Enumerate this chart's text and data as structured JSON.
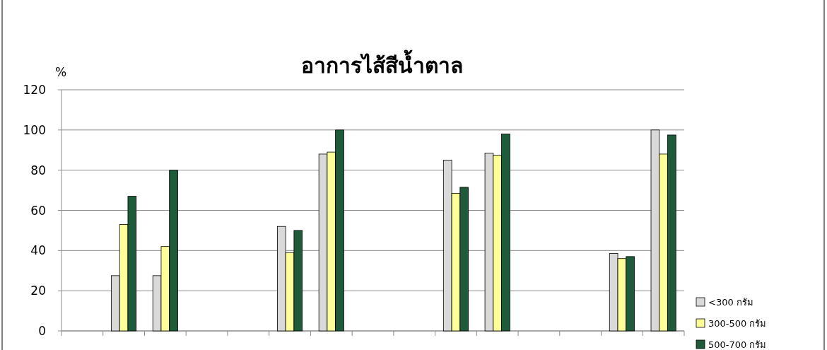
{
  "chart_data": {
    "type": "bar",
    "title": "อาการไส้สีน้ำตาล",
    "ylabel": "%",
    "categories": [
      null,
      null,
      null,
      null,
      null,
      null,
      null,
      null,
      null,
      null,
      null,
      null,
      null,
      null,
      null
    ],
    "series": [
      {
        "name": "<300 กรัม",
        "color": "#d9d9d9",
        "values": [
          null,
          27.5,
          27.5,
          null,
          null,
          52,
          88,
          null,
          null,
          85,
          88.5,
          null,
          null,
          38.5,
          100
        ]
      },
      {
        "name": "300-500 กรัม",
        "color": "#ffff99",
        "values": [
          null,
          53,
          42,
          null,
          null,
          39,
          89,
          null,
          null,
          68.5,
          87.5,
          null,
          null,
          36,
          88
        ]
      },
      {
        "name": "500-700 กรัม",
        "color": "#1e5b3a",
        "values": [
          null,
          67,
          80,
          null,
          null,
          50,
          100,
          null,
          null,
          71.5,
          98,
          null,
          null,
          37,
          97.5
        ]
      }
    ],
    "ylim": [
      0,
      120
    ],
    "yticks": [
      0,
      20,
      40,
      60,
      80,
      100,
      120
    ],
    "grid": "y",
    "legend": "right"
  }
}
